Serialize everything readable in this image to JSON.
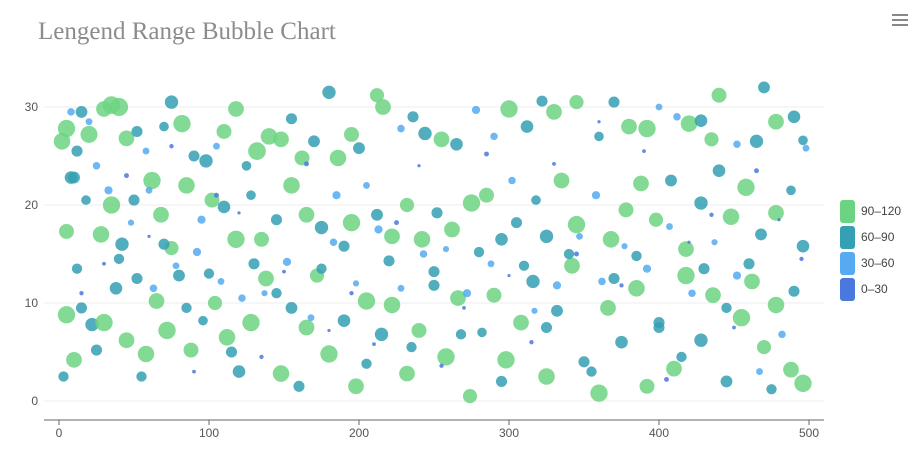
{
  "chart_data": {
    "type": "scatter",
    "title": "Lengend Range Bubble Chart",
    "xlabel": "",
    "ylabel": "",
    "xlim": [
      0,
      500
    ],
    "ylim": [
      0,
      30
    ],
    "xticks": [
      "0",
      "100",
      "200",
      "300",
      "400",
      "500"
    ],
    "yticks": [
      "0",
      "10",
      "20",
      "30"
    ],
    "grid": true,
    "legend_position": "right",
    "legend": [
      {
        "label": "90–120",
        "min": 90,
        "max": 120,
        "color": "#6dd383"
      },
      {
        "label": "60–90",
        "min": 60,
        "max": 90,
        "color": "#34a0b3"
      },
      {
        "label": "30–60",
        "min": 30,
        "max": 60,
        "color": "#55aaf0"
      },
      {
        "label": "0–30",
        "min": 0,
        "max": 30,
        "color": "#4a78dc"
      }
    ],
    "point_format": [
      "x",
      "y",
      "value"
    ],
    "points": [
      [
        2,
        26.5,
        105
      ],
      [
        5,
        27.8,
        110
      ],
      [
        8,
        22.8,
        80
      ],
      [
        12,
        25.5,
        70
      ],
      [
        15,
        29.5,
        75
      ],
      [
        20,
        27.2,
        108
      ],
      [
        25,
        24,
        45
      ],
      [
        30,
        29.8,
        100
      ],
      [
        35,
        30.2,
        112
      ],
      [
        40,
        30,
        115
      ],
      [
        45,
        26.8,
        100
      ],
      [
        52,
        27.5,
        70
      ],
      [
        58,
        25.5,
        40
      ],
      [
        62,
        22.5,
        110
      ],
      [
        70,
        28,
        60
      ],
      [
        75,
        30.5,
        85
      ],
      [
        82,
        28.3,
        110
      ],
      [
        90,
        25,
        70
      ],
      [
        98,
        24.5,
        85
      ],
      [
        105,
        26,
        40
      ],
      [
        110,
        27.5,
        95
      ],
      [
        118,
        29.8,
        100
      ],
      [
        125,
        24,
        60
      ],
      [
        132,
        25.5,
        112
      ],
      [
        140,
        27,
        105
      ],
      [
        148,
        26.7,
        100
      ],
      [
        155,
        28.8,
        70
      ],
      [
        162,
        24.8,
        95
      ],
      [
        170,
        26.5,
        75
      ],
      [
        180,
        31.5,
        85
      ],
      [
        186,
        24.8,
        105
      ],
      [
        195,
        27.2,
        95
      ],
      [
        200,
        25.8,
        75
      ],
      [
        212,
        31.2,
        90
      ],
      [
        216,
        30,
        100
      ],
      [
        228,
        27.8,
        45
      ],
      [
        236,
        29,
        70
      ],
      [
        244,
        27.3,
        85
      ],
      [
        255,
        26.7,
        100
      ],
      [
        265,
        26.2,
        80
      ],
      [
        278,
        29.7,
        50
      ],
      [
        290,
        27,
        45
      ],
      [
        300,
        29.8,
        110
      ],
      [
        312,
        28,
        80
      ],
      [
        322,
        30.6,
        70
      ],
      [
        330,
        29.5,
        100
      ],
      [
        345,
        30.5,
        90
      ],
      [
        360,
        27,
        60
      ],
      [
        370,
        30.5,
        70
      ],
      [
        380,
        28,
        100
      ],
      [
        392,
        27.8,
        110
      ],
      [
        400,
        30,
        40
      ],
      [
        412,
        29,
        45
      ],
      [
        420,
        28.3,
        105
      ],
      [
        428,
        28.6,
        80
      ],
      [
        435,
        26.7,
        90
      ],
      [
        440,
        31.2,
        95
      ],
      [
        452,
        26.2,
        45
      ],
      [
        465,
        26.5,
        85
      ],
      [
        470,
        32,
        75
      ],
      [
        478,
        28.5,
        100
      ],
      [
        490,
        29,
        80
      ],
      [
        496,
        26.6,
        60
      ],
      [
        5,
        17.3,
        95
      ],
      [
        10,
        22.8,
        75
      ],
      [
        18,
        20.5,
        60
      ],
      [
        28,
        17,
        105
      ],
      [
        35,
        20,
        110
      ],
      [
        42,
        16,
        85
      ],
      [
        50,
        20.5,
        70
      ],
      [
        60,
        21.5,
        40
      ],
      [
        68,
        19,
        100
      ],
      [
        75,
        15.6,
        90
      ],
      [
        85,
        22,
        105
      ],
      [
        95,
        18.5,
        50
      ],
      [
        102,
        20.5,
        95
      ],
      [
        110,
        19.8,
        80
      ],
      [
        118,
        16.5,
        110
      ],
      [
        128,
        21,
        60
      ],
      [
        135,
        16.5,
        95
      ],
      [
        145,
        18.5,
        70
      ],
      [
        155,
        22,
        105
      ],
      [
        165,
        19,
        100
      ],
      [
        175,
        17.7,
        85
      ],
      [
        185,
        21,
        50
      ],
      [
        195,
        18.2,
        110
      ],
      [
        205,
        22,
        40
      ],
      [
        212,
        19,
        75
      ],
      [
        222,
        16.8,
        100
      ],
      [
        232,
        20,
        90
      ],
      [
        242,
        16.5,
        105
      ],
      [
        252,
        19.2,
        70
      ],
      [
        262,
        17.5,
        100
      ],
      [
        275,
        20.2,
        110
      ],
      [
        285,
        21,
        95
      ],
      [
        295,
        16.5,
        80
      ],
      [
        305,
        18.2,
        70
      ],
      [
        318,
        20.5,
        60
      ],
      [
        325,
        16.8,
        85
      ],
      [
        335,
        22.5,
        100
      ],
      [
        345,
        18,
        110
      ],
      [
        358,
        21,
        50
      ],
      [
        368,
        16.5,
        105
      ],
      [
        378,
        19.5,
        95
      ],
      [
        388,
        22.2,
        100
      ],
      [
        398,
        18.5,
        90
      ],
      [
        408,
        22.5,
        75
      ],
      [
        418,
        15.5,
        100
      ],
      [
        428,
        20.2,
        85
      ],
      [
        440,
        23.5,
        80
      ],
      [
        448,
        18.8,
        105
      ],
      [
        458,
        21.8,
        110
      ],
      [
        468,
        17,
        75
      ],
      [
        478,
        19.2,
        100
      ],
      [
        488,
        21.5,
        60
      ],
      [
        496,
        15.8,
        80
      ],
      [
        5,
        8.8,
        110
      ],
      [
        10,
        4.2,
        100
      ],
      [
        15,
        9.5,
        70
      ],
      [
        22,
        7.8,
        85
      ],
      [
        30,
        8,
        110
      ],
      [
        38,
        11.5,
        80
      ],
      [
        45,
        6.2,
        100
      ],
      [
        52,
        12.5,
        70
      ],
      [
        58,
        4.8,
        105
      ],
      [
        65,
        10.2,
        100
      ],
      [
        72,
        7.2,
        110
      ],
      [
        80,
        12.8,
        75
      ],
      [
        88,
        5.2,
        95
      ],
      [
        96,
        8.2,
        60
      ],
      [
        104,
        10,
        90
      ],
      [
        112,
        6.5,
        105
      ],
      [
        120,
        3,
        80
      ],
      [
        128,
        8,
        110
      ],
      [
        138,
        12.5,
        100
      ],
      [
        148,
        2.8,
        105
      ],
      [
        155,
        9.5,
        75
      ],
      [
        165,
        7.5,
        100
      ],
      [
        172,
        12.8,
        90
      ],
      [
        180,
        4.8,
        110
      ],
      [
        190,
        8.2,
        80
      ],
      [
        198,
        1.5,
        100
      ],
      [
        205,
        10.2,
        110
      ],
      [
        215,
        6.8,
        85
      ],
      [
        222,
        9.8,
        105
      ],
      [
        232,
        2.8,
        100
      ],
      [
        240,
        7.2,
        95
      ],
      [
        250,
        11.8,
        70
      ],
      [
        258,
        4.5,
        110
      ],
      [
        266,
        10.5,
        100
      ],
      [
        274,
        0.5,
        90
      ],
      [
        282,
        7,
        60
      ],
      [
        290,
        10.8,
        95
      ],
      [
        298,
        4.2,
        110
      ],
      [
        308,
        8,
        100
      ],
      [
        316,
        12.2,
        85
      ],
      [
        325,
        2.5,
        105
      ],
      [
        332,
        9.2,
        75
      ],
      [
        342,
        13.8,
        100
      ],
      [
        350,
        4,
        70
      ],
      [
        360,
        0.8,
        110
      ],
      [
        366,
        9.5,
        100
      ],
      [
        375,
        6,
        80
      ],
      [
        385,
        11.5,
        105
      ],
      [
        392,
        1.5,
        95
      ],
      [
        400,
        8,
        70
      ],
      [
        410,
        3.3,
        100
      ],
      [
        418,
        12.8,
        110
      ],
      [
        428,
        6.2,
        85
      ],
      [
        436,
        10.8,
        100
      ],
      [
        445,
        2,
        75
      ],
      [
        455,
        8.5,
        110
      ],
      [
        462,
        12.2,
        100
      ],
      [
        470,
        5.5,
        90
      ],
      [
        478,
        9.8,
        105
      ],
      [
        488,
        3.2,
        100
      ],
      [
        496,
        1.8,
        110
      ],
      [
        3,
        2.5,
        65
      ],
      [
        12,
        13.5,
        65
      ],
      [
        25,
        5.2,
        70
      ],
      [
        40,
        14.5,
        65
      ],
      [
        55,
        2.5,
        65
      ],
      [
        70,
        16,
        70
      ],
      [
        85,
        9.5,
        65
      ],
      [
        100,
        13,
        65
      ],
      [
        115,
        5,
        70
      ],
      [
        130,
        14,
        70
      ],
      [
        145,
        11,
        65
      ],
      [
        160,
        1.5,
        70
      ],
      [
        175,
        13.5,
        65
      ],
      [
        190,
        15.8,
        70
      ],
      [
        205,
        3.8,
        65
      ],
      [
        220,
        14.3,
        70
      ],
      [
        235,
        5.5,
        65
      ],
      [
        250,
        13.2,
        70
      ],
      [
        268,
        6.8,
        65
      ],
      [
        280,
        15.2,
        65
      ],
      [
        295,
        2,
        70
      ],
      [
        310,
        13.8,
        65
      ],
      [
        325,
        7.5,
        70
      ],
      [
        340,
        15,
        65
      ],
      [
        355,
        3,
        65
      ],
      [
        370,
        12.5,
        70
      ],
      [
        385,
        14.8,
        65
      ],
      [
        400,
        7.5,
        70
      ],
      [
        415,
        4.5,
        65
      ],
      [
        430,
        13.5,
        70
      ],
      [
        445,
        9.5,
        65
      ],
      [
        460,
        14,
        70
      ],
      [
        475,
        1.2,
        65
      ],
      [
        490,
        11.2,
        70
      ],
      [
        8,
        29.5,
        45
      ],
      [
        20,
        28.5,
        40
      ],
      [
        33,
        21.5,
        50
      ],
      [
        48,
        18.2,
        35
      ],
      [
        63,
        11.5,
        45
      ],
      [
        78,
        13.8,
        40
      ],
      [
        92,
        15.2,
        50
      ],
      [
        108,
        12.2,
        40
      ],
      [
        122,
        10.5,
        45
      ],
      [
        137,
        11,
        35
      ],
      [
        152,
        14.2,
        50
      ],
      [
        168,
        8.5,
        40
      ],
      [
        183,
        16.2,
        45
      ],
      [
        198,
        12,
        35
      ],
      [
        213,
        17.5,
        50
      ],
      [
        228,
        11.5,
        40
      ],
      [
        243,
        15,
        45
      ],
      [
        258,
        15.5,
        35
      ],
      [
        272,
        11,
        50
      ],
      [
        288,
        14,
        40
      ],
      [
        302,
        22.5,
        45
      ],
      [
        317,
        9.2,
        35
      ],
      [
        332,
        11.8,
        50
      ],
      [
        347,
        16.8,
        40
      ],
      [
        362,
        12.2,
        45
      ],
      [
        377,
        15.8,
        35
      ],
      [
        392,
        13.5,
        50
      ],
      [
        407,
        17.8,
        40
      ],
      [
        422,
        11,
        45
      ],
      [
        437,
        16.2,
        35
      ],
      [
        452,
        12.8,
        50
      ],
      [
        467,
        3,
        40
      ],
      [
        482,
        6.8,
        45
      ],
      [
        498,
        25.8,
        40
      ],
      [
        15,
        11,
        20
      ],
      [
        30,
        14,
        15
      ],
      [
        45,
        23,
        25
      ],
      [
        60,
        16.8,
        10
      ],
      [
        75,
        26,
        20
      ],
      [
        90,
        3,
        15
      ],
      [
        105,
        21,
        25
      ],
      [
        120,
        19.2,
        10
      ],
      [
        135,
        4.5,
        20
      ],
      [
        150,
        13.2,
        15
      ],
      [
        165,
        24.2,
        25
      ],
      [
        180,
        7.2,
        10
      ],
      [
        195,
        11,
        20
      ],
      [
        210,
        5.8,
        15
      ],
      [
        225,
        18.2,
        25
      ],
      [
        240,
        24,
        10
      ],
      [
        255,
        3.6,
        20
      ],
      [
        270,
        9.5,
        15
      ],
      [
        285,
        25.2,
        25
      ],
      [
        300,
        12.8,
        10
      ],
      [
        315,
        6,
        20
      ],
      [
        330,
        24.2,
        15
      ],
      [
        345,
        15,
        25
      ],
      [
        360,
        28.5,
        10
      ],
      [
        375,
        11.8,
        20
      ],
      [
        390,
        25.5,
        15
      ],
      [
        405,
        2.2,
        25
      ],
      [
        420,
        16.2,
        10
      ],
      [
        435,
        19,
        20
      ],
      [
        450,
        7.5,
        15
      ],
      [
        465,
        23.5,
        25
      ],
      [
        480,
        18.5,
        10
      ],
      [
        495,
        14.5,
        20
      ]
    ]
  }
}
